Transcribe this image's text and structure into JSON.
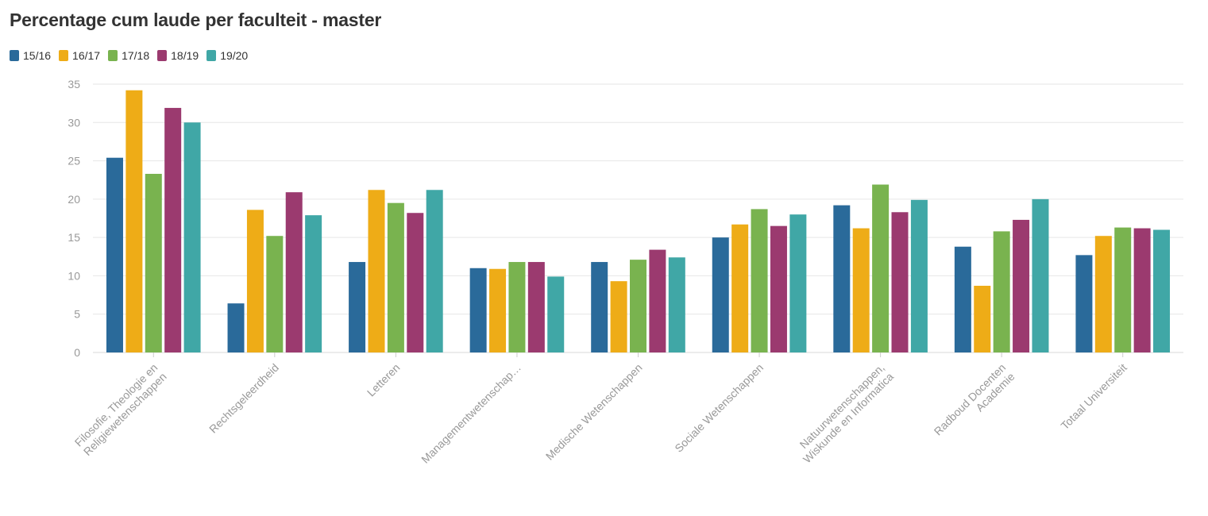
{
  "chart_data": {
    "type": "bar",
    "title": "Percentage cum laude per faculteit - master",
    "xlabel": "",
    "ylabel": "",
    "ylim": [
      0,
      35
    ],
    "yticks": [
      0,
      5,
      10,
      15,
      20,
      25,
      30,
      35
    ],
    "grid": true,
    "legend_position": "top-left",
    "categories": [
      [
        "Filosofie, Theologie en",
        "Religiewetenschappen"
      ],
      [
        "Rechtsgeleerdheid"
      ],
      [
        "Letteren"
      ],
      [
        "Managementwetenschap…"
      ],
      [
        "Medische Wetenschappen"
      ],
      [
        "Sociale Wetenschappen"
      ],
      [
        "Natuurwetenschappen,",
        "Wiskunde en Informatica"
      ],
      [
        "Radboud Docenten",
        "Academie"
      ],
      [
        "Totaal Universiteit"
      ]
    ],
    "series": [
      {
        "name": "15/16",
        "color": "#2a6a9a",
        "values": [
          25.4,
          6.4,
          11.8,
          11.0,
          11.8,
          15.0,
          19.2,
          13.8,
          12.7
        ]
      },
      {
        "name": "16/17",
        "color": "#eeac17",
        "values": [
          34.2,
          18.6,
          21.2,
          10.9,
          9.3,
          16.7,
          16.2,
          8.7,
          15.2
        ]
      },
      {
        "name": "17/18",
        "color": "#79b34f",
        "values": [
          23.3,
          15.2,
          19.5,
          11.8,
          12.1,
          18.7,
          21.9,
          15.8,
          16.3
        ]
      },
      {
        "name": "18/19",
        "color": "#9b3a6f",
        "values": [
          31.9,
          20.9,
          18.2,
          11.8,
          13.4,
          16.5,
          18.3,
          17.3,
          16.2
        ]
      },
      {
        "name": "19/20",
        "color": "#40a7a6",
        "values": [
          30.0,
          17.9,
          21.2,
          9.9,
          12.4,
          18.0,
          19.9,
          20.0,
          16.0
        ]
      }
    ]
  }
}
